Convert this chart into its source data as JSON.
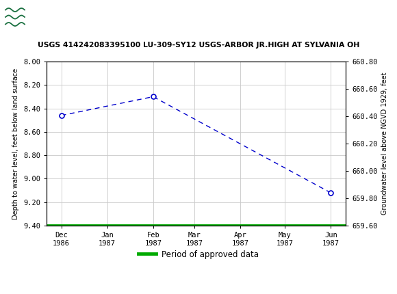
{
  "title": "USGS 414242083395100 LU-309-SY12 USGS-ARBOR JR.HIGH AT SYLVANIA OH",
  "header_color": "#1a7040",
  "ylabel_left": "Depth to water level, feet below land surface",
  "ylabel_right": "Groundwater level above NGVD 1929, feet",
  "ylim_left": [
    9.4,
    8.0
  ],
  "ylim_right": [
    659.6,
    660.8
  ],
  "yticks_left": [
    8.0,
    8.2,
    8.4,
    8.6,
    8.8,
    9.0,
    9.2,
    9.4
  ],
  "yticks_right": [
    659.6,
    659.8,
    660.0,
    660.2,
    660.4,
    660.6,
    660.8
  ],
  "xtick_labels": [
    "Dec\n1986",
    "Jan\n1987",
    "Feb\n1987",
    "Mar\n1987",
    "Apr\n1987",
    "May\n1987",
    "Jun\n1987"
  ],
  "xtick_positions": [
    0,
    31,
    62,
    90,
    121,
    151,
    182
  ],
  "data_points_x": [
    0,
    62,
    182
  ],
  "data_points_y": [
    8.46,
    8.3,
    9.12
  ],
  "line_color": "#0000cc",
  "marker_color": "#0000cc",
  "bg_color": "#ffffff",
  "plot_bg_color": "#ffffff",
  "grid_color": "#c8c8c8",
  "green_line_y": 9.4,
  "green_line_color": "#00aa00",
  "legend_label": "Period of approved data",
  "xlim": [
    -10,
    192
  ],
  "fig_width": 5.8,
  "fig_height": 4.3,
  "dpi": 100
}
